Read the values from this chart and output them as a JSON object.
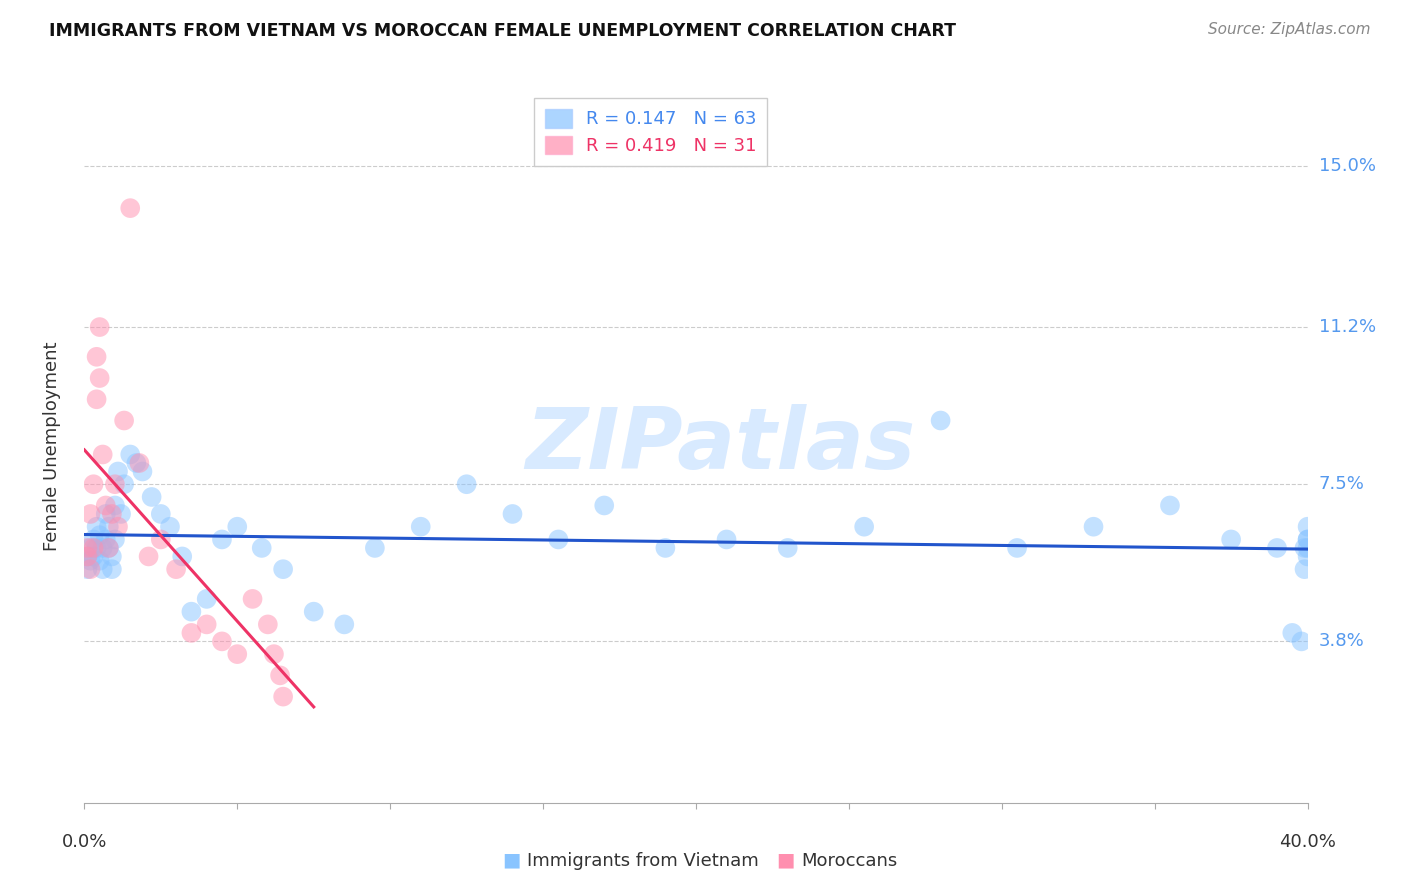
{
  "title": "IMMIGRANTS FROM VIETNAM VS MOROCCAN FEMALE UNEMPLOYMENT CORRELATION CHART",
  "source": "Source: ZipAtlas.com",
  "ylabel": "Female Unemployment",
  "yticks_right": [
    "15.0%",
    "11.2%",
    "7.5%",
    "3.8%"
  ],
  "ytick_values": [
    0.15,
    0.112,
    0.075,
    0.038
  ],
  "ymin": 0.0,
  "ymax": 0.168,
  "xmin": 0.0,
  "xmax": 0.4,
  "color_vietnam": "#89C4FF",
  "color_morocco": "#FF8FAF",
  "color_line_vietnam": "#2255CC",
  "color_line_morocco": "#EE3366",
  "watermark_text": "ZIPatlas",
  "vietnam_x": [
    0.001,
    0.001,
    0.002,
    0.002,
    0.003,
    0.003,
    0.004,
    0.004,
    0.005,
    0.005,
    0.006,
    0.006,
    0.007,
    0.007,
    0.008,
    0.008,
    0.009,
    0.009,
    0.01,
    0.01,
    0.011,
    0.012,
    0.013,
    0.015,
    0.017,
    0.019,
    0.022,
    0.025,
    0.028,
    0.032,
    0.035,
    0.04,
    0.045,
    0.05,
    0.058,
    0.065,
    0.075,
    0.085,
    0.095,
    0.11,
    0.125,
    0.14,
    0.155,
    0.17,
    0.19,
    0.21,
    0.23,
    0.255,
    0.28,
    0.305,
    0.33,
    0.355,
    0.375,
    0.39,
    0.395,
    0.398,
    0.399,
    0.399,
    0.4,
    0.4,
    0.4,
    0.4,
    0.4
  ],
  "vietnam_y": [
    0.058,
    0.055,
    0.06,
    0.057,
    0.062,
    0.058,
    0.065,
    0.06,
    0.063,
    0.057,
    0.06,
    0.055,
    0.068,
    0.062,
    0.065,
    0.06,
    0.058,
    0.055,
    0.07,
    0.062,
    0.078,
    0.068,
    0.075,
    0.082,
    0.08,
    0.078,
    0.072,
    0.068,
    0.065,
    0.058,
    0.045,
    0.048,
    0.062,
    0.065,
    0.06,
    0.055,
    0.045,
    0.042,
    0.06,
    0.065,
    0.075,
    0.068,
    0.062,
    0.07,
    0.06,
    0.062,
    0.06,
    0.065,
    0.09,
    0.06,
    0.065,
    0.07,
    0.062,
    0.06,
    0.04,
    0.038,
    0.055,
    0.06,
    0.062,
    0.058,
    0.06,
    0.062,
    0.065
  ],
  "morocco_x": [
    0.001,
    0.001,
    0.002,
    0.002,
    0.003,
    0.003,
    0.004,
    0.004,
    0.005,
    0.005,
    0.006,
    0.007,
    0.008,
    0.009,
    0.01,
    0.011,
    0.013,
    0.015,
    0.018,
    0.021,
    0.025,
    0.03,
    0.035,
    0.04,
    0.045,
    0.05,
    0.055,
    0.06,
    0.062,
    0.064,
    0.065
  ],
  "morocco_y": [
    0.06,
    0.058,
    0.068,
    0.055,
    0.075,
    0.06,
    0.095,
    0.105,
    0.112,
    0.1,
    0.082,
    0.07,
    0.06,
    0.068,
    0.075,
    0.065,
    0.09,
    0.14,
    0.08,
    0.058,
    0.062,
    0.055,
    0.04,
    0.042,
    0.038,
    0.035,
    0.048,
    0.042,
    0.035,
    0.03,
    0.025
  ]
}
